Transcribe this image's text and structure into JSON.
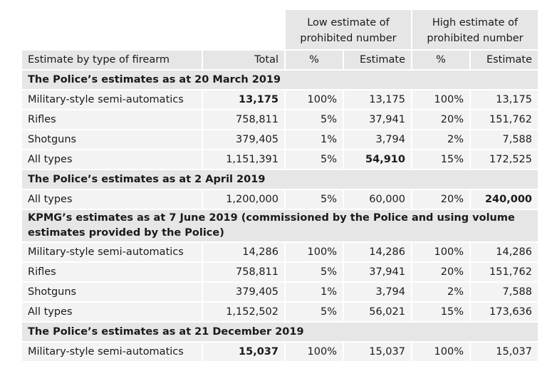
{
  "header": {
    "group_low": [
      "Low estimate of",
      "prohibited number"
    ],
    "group_high": [
      "High estimate of",
      "prohibited number"
    ],
    "columns": [
      "Estimate by type of firearm",
      "Total",
      "%",
      "Estimate",
      "%",
      "Estimate"
    ]
  },
  "sections": [
    {
      "title": "The Police’s estimates as at 20 March 2019",
      "rows": [
        {
          "type": "Military-style semi-automatics",
          "total": "13,175",
          "low_pct": "100%",
          "low_est": "13,175",
          "high_pct": "100%",
          "high_est": "13,175"
        },
        {
          "type": "Rifles",
          "total": "758,811",
          "low_pct": "5%",
          "low_est": "37,941",
          "high_pct": "20%",
          "high_est": "151,762"
        },
        {
          "type": "Shotguns",
          "total": "379,405",
          "low_pct": "1%",
          "low_est": "3,794",
          "high_pct": "2%",
          "high_est": "7,588"
        },
        {
          "type": "All types",
          "total": "1,151,391",
          "low_pct": "5%",
          "low_est": "54,910",
          "high_pct": "15%",
          "high_est": "172,525"
        }
      ]
    },
    {
      "title": "The Police’s estimates as at 2 April 2019",
      "rows": [
        {
          "type": "All types",
          "total": "1,200,000",
          "low_pct": "5%",
          "low_est": "60,000",
          "high_pct": "20%",
          "high_est": "240,000"
        }
      ]
    },
    {
      "title": "KPMG’s estimates as at 7 June 2019 (commissioned by the Police and using volume estimates provided by the Police)",
      "rows": [
        {
          "type": "Military-style semi-automatics",
          "total": "14,286",
          "low_pct": "100%",
          "low_est": "14,286",
          "high_pct": "100%",
          "high_est": "14,286"
        },
        {
          "type": "Rifles",
          "total": "758,811",
          "low_pct": "5%",
          "low_est": "37,941",
          "high_pct": "20%",
          "high_est": "151,762"
        },
        {
          "type": "Shotguns",
          "total": "379,405",
          "low_pct": "1%",
          "low_est": "3,794",
          "high_pct": "2%",
          "high_est": "7,588"
        },
        {
          "type": "All types",
          "total": "1,152,502",
          "low_pct": "5%",
          "low_est": "56,021",
          "high_pct": "15%",
          "high_est": "173,636"
        }
      ]
    },
    {
      "title": "The Police’s estimates as at 21 December 2019",
      "rows": [
        {
          "type": "Military-style semi-automatics",
          "total": "15,037",
          "low_pct": "100%",
          "low_est": "15,037",
          "high_pct": "100%",
          "high_est": "15,037"
        }
      ]
    }
  ]
}
